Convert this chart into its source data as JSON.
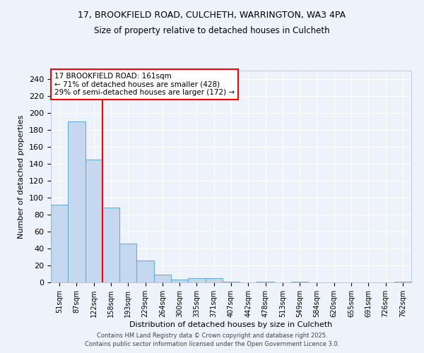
{
  "title1": "17, BROOKFIELD ROAD, CULCHETH, WARRINGTON, WA3 4PA",
  "title2": "Size of property relative to detached houses in Culcheth",
  "xlabel": "Distribution of detached houses by size in Culcheth",
  "ylabel": "Number of detached properties",
  "bar_labels": [
    "51sqm",
    "87sqm",
    "122sqm",
    "158sqm",
    "193sqm",
    "229sqm",
    "264sqm",
    "300sqm",
    "335sqm",
    "371sqm",
    "407sqm",
    "442sqm",
    "478sqm",
    "513sqm",
    "549sqm",
    "584sqm",
    "620sqm",
    "655sqm",
    "691sqm",
    "726sqm",
    "762sqm"
  ],
  "bar_values": [
    92,
    190,
    145,
    88,
    46,
    26,
    9,
    3,
    5,
    5,
    1,
    0,
    1,
    0,
    1,
    0,
    0,
    0,
    0,
    0,
    1
  ],
  "bar_color": "#c5d8ef",
  "bar_edge_color": "#6aaed6",
  "red_line_index": 3,
  "annotation_text": "17 BROOKFIELD ROAD: 161sqm\n← 71% of detached houses are smaller (428)\n29% of semi-detached houses are larger (172) →",
  "ylim": [
    0,
    250
  ],
  "yticks": [
    0,
    20,
    40,
    60,
    80,
    100,
    120,
    140,
    160,
    180,
    200,
    220,
    240
  ],
  "background_color": "#eef2fa",
  "grid_color": "#ffffff",
  "footer1": "Contains HM Land Registry data © Crown copyright and database right 2025.",
  "footer2": "Contains public sector information licensed under the Open Government Licence 3.0."
}
